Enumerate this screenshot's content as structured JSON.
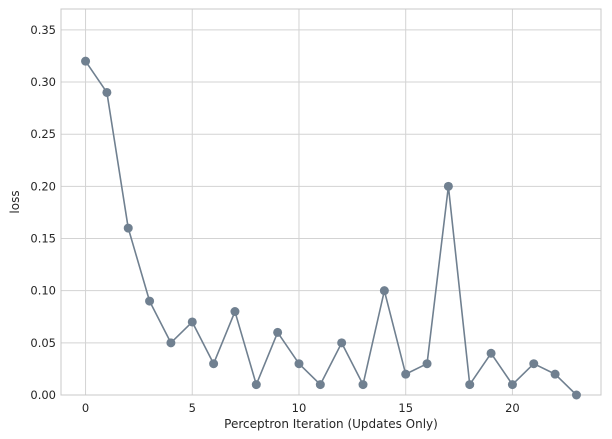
{
  "chart_data": {
    "type": "line",
    "title": "",
    "xlabel": "Perceptron Iteration (Updates Only)",
    "ylabel": "loss",
    "x": [
      0,
      1,
      2,
      3,
      4,
      5,
      6,
      7,
      8,
      9,
      10,
      11,
      12,
      13,
      14,
      15,
      16,
      17,
      18,
      19,
      20,
      21,
      22,
      23
    ],
    "series": [
      {
        "values": [
          0.32,
          0.29,
          0.16,
          0.09,
          0.05,
          0.07,
          0.03,
          0.08,
          0.01,
          0.06,
          0.03,
          0.01,
          0.05,
          0.01,
          0.1,
          0.02,
          0.03,
          0.2,
          0.01,
          0.04,
          0.01,
          0.03,
          0.02,
          0.0
        ]
      }
    ],
    "xlim": [
      -1.15,
      24.15
    ],
    "ylim": [
      0,
      0.37
    ],
    "xticks": [
      0,
      5,
      10,
      15,
      20
    ],
    "xtick_labels": [
      "0",
      "5",
      "10",
      "15",
      "20"
    ],
    "yticks": [
      0,
      0.05,
      0.1,
      0.15,
      0.2,
      0.25,
      0.3,
      0.35
    ],
    "ytick_labels": [
      "0.00",
      "0.05",
      "0.10",
      "0.15",
      "0.20",
      "0.25",
      "0.30",
      "0.35"
    ],
    "grid": true,
    "line_color": "#708090",
    "grid_color": "#d3d3d3",
    "frame_color": "#c8c8c8"
  }
}
